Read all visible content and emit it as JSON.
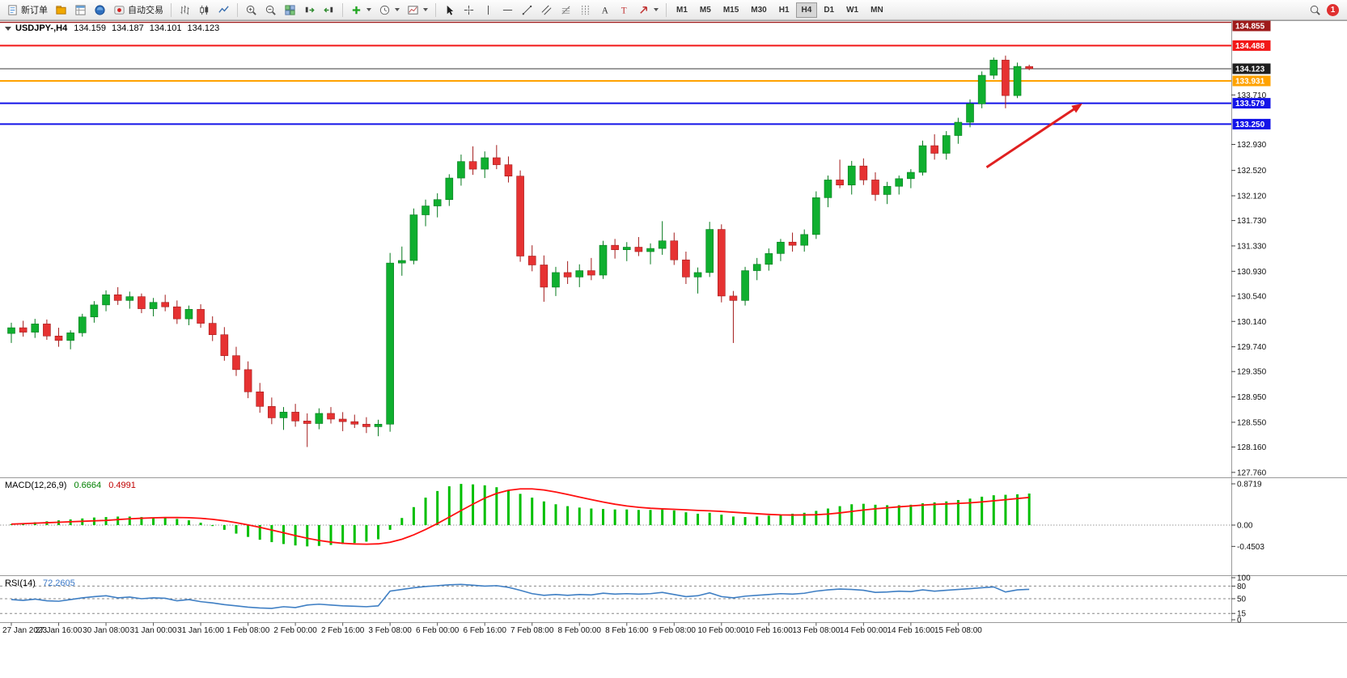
{
  "toolbar": {
    "new_order": "新订单",
    "autotrading": "自动交易",
    "timeframes": [
      "M1",
      "M5",
      "M15",
      "M30",
      "H1",
      "H4",
      "D1",
      "W1",
      "MN"
    ],
    "active_timeframe": "H4",
    "notification": "1"
  },
  "chart": {
    "symbol_period": "USDJPY-,H4",
    "open": "134.159",
    "high": "134.187",
    "low": "134.101",
    "close": "134.123"
  },
  "indicators": {
    "macd": {
      "name": "MACD(12,26,9)",
      "main_value": "0.6664",
      "signal_value": "0.4991"
    },
    "rsi": {
      "name": "RSI(14)",
      "value": "72.2605"
    }
  },
  "chart_data": {
    "type": "candlestick",
    "symbol": "USDJPY-",
    "timeframe": "H4",
    "title": "USDJPY- H4 candlestick chart with MACD and RSI",
    "price_range": [
      127.72,
      134.875
    ],
    "price_axis_ticks": [
      "133.710",
      "132.930",
      "132.520",
      "132.120",
      "131.730",
      "131.330",
      "130.930",
      "130.540",
      "130.140",
      "129.740",
      "129.350",
      "128.950",
      "128.550",
      "128.160",
      "127.760"
    ],
    "candles_per_label": 4,
    "time_labels": [
      "27 Jan 2023",
      "27 Jan 16:00",
      "30 Jan 08:00",
      "31 Jan 00:00",
      "31 Jan 16:00",
      "1 Feb 08:00",
      "2 Feb 00:00",
      "2 Feb 16:00",
      "3 Feb 08:00",
      "6 Feb 00:00",
      "6 Feb 16:00",
      "7 Feb 08:00",
      "8 Feb 00:00",
      "8 Feb 16:00",
      "9 Feb 08:00",
      "10 Feb 00:00",
      "10 Feb 16:00",
      "13 Feb 08:00",
      "14 Feb 00:00",
      "14 Feb 16:00",
      "15 Feb 08:00"
    ],
    "candles_ohlc": [
      [
        129.95,
        130.12,
        129.8,
        130.04
      ],
      [
        130.04,
        130.15,
        129.9,
        129.97
      ],
      [
        129.97,
        130.18,
        129.88,
        130.1
      ],
      [
        130.1,
        130.17,
        129.85,
        129.91
      ],
      [
        129.91,
        130.04,
        129.74,
        129.84
      ],
      [
        129.84,
        130.0,
        129.7,
        129.96
      ],
      [
        129.96,
        130.26,
        129.9,
        130.21
      ],
      [
        130.21,
        130.46,
        130.12,
        130.4
      ],
      [
        130.4,
        130.63,
        130.3,
        130.56
      ],
      [
        130.56,
        130.68,
        130.4,
        130.47
      ],
      [
        130.47,
        130.61,
        130.34,
        130.53
      ],
      [
        130.53,
        130.58,
        130.27,
        130.34
      ],
      [
        130.34,
        130.51,
        130.22,
        130.44
      ],
      [
        130.44,
        130.56,
        130.3,
        130.37
      ],
      [
        130.37,
        130.47,
        130.1,
        130.18
      ],
      [
        130.18,
        130.39,
        130.08,
        130.33
      ],
      [
        130.33,
        130.41,
        130.04,
        130.11
      ],
      [
        130.11,
        130.22,
        129.83,
        129.93
      ],
      [
        129.93,
        130.05,
        129.52,
        129.6
      ],
      [
        129.6,
        129.74,
        129.28,
        129.38
      ],
      [
        129.38,
        129.51,
        128.93,
        129.03
      ],
      [
        129.03,
        129.17,
        128.7,
        128.8
      ],
      [
        128.8,
        128.94,
        128.52,
        128.62
      ],
      [
        128.62,
        128.79,
        128.43,
        128.71
      ],
      [
        128.71,
        128.84,
        128.48,
        128.57
      ],
      [
        128.57,
        128.69,
        128.16,
        128.53
      ],
      [
        128.53,
        128.77,
        128.44,
        128.69
      ],
      [
        128.69,
        128.79,
        128.53,
        128.6
      ],
      [
        128.6,
        128.71,
        128.41,
        128.56
      ],
      [
        128.56,
        128.67,
        128.46,
        128.52
      ],
      [
        128.52,
        128.63,
        128.38,
        128.48
      ],
      [
        128.48,
        128.59,
        128.33,
        128.52
      ],
      [
        128.52,
        131.22,
        128.4,
        131.06
      ],
      [
        131.06,
        131.32,
        130.86,
        131.1
      ],
      [
        131.1,
        131.92,
        131.04,
        131.82
      ],
      [
        131.82,
        132.06,
        131.64,
        131.96
      ],
      [
        131.96,
        132.16,
        131.78,
        132.06
      ],
      [
        132.06,
        132.46,
        131.96,
        132.4
      ],
      [
        132.4,
        132.77,
        132.28,
        132.66
      ],
      [
        132.66,
        132.9,
        132.45,
        132.54
      ],
      [
        132.54,
        132.82,
        132.4,
        132.72
      ],
      [
        132.72,
        132.92,
        132.54,
        132.61
      ],
      [
        132.61,
        132.74,
        132.33,
        132.43
      ],
      [
        132.43,
        132.52,
        131.08,
        131.17
      ],
      [
        131.17,
        131.34,
        130.93,
        131.03
      ],
      [
        131.03,
        131.18,
        130.45,
        130.68
      ],
      [
        130.68,
        131.0,
        130.54,
        130.91
      ],
      [
        130.91,
        131.09,
        130.73,
        130.84
      ],
      [
        130.84,
        131.04,
        130.68,
        130.94
      ],
      [
        130.94,
        131.14,
        130.79,
        130.87
      ],
      [
        130.87,
        131.41,
        130.81,
        131.34
      ],
      [
        131.34,
        131.44,
        131.13,
        131.27
      ],
      [
        131.27,
        131.39,
        131.09,
        131.31
      ],
      [
        131.31,
        131.47,
        131.17,
        131.24
      ],
      [
        131.24,
        131.37,
        131.04,
        131.29
      ],
      [
        131.29,
        131.72,
        131.19,
        131.41
      ],
      [
        131.41,
        131.54,
        131.03,
        131.11
      ],
      [
        131.11,
        131.24,
        130.73,
        130.84
      ],
      [
        130.84,
        130.99,
        130.58,
        130.91
      ],
      [
        130.91,
        131.71,
        130.84,
        131.59
      ],
      [
        131.59,
        131.67,
        130.44,
        130.54
      ],
      [
        130.54,
        130.62,
        129.8,
        130.47
      ],
      [
        130.47,
        131.0,
        130.39,
        130.94
      ],
      [
        130.94,
        131.14,
        130.79,
        131.04
      ],
      [
        131.04,
        131.29,
        130.94,
        131.21
      ],
      [
        131.21,
        131.44,
        131.09,
        131.39
      ],
      [
        131.39,
        131.54,
        131.24,
        131.34
      ],
      [
        131.34,
        131.59,
        131.24,
        131.51
      ],
      [
        131.51,
        132.19,
        131.44,
        132.09
      ],
      [
        132.09,
        132.44,
        131.94,
        132.37
      ],
      [
        132.37,
        132.69,
        132.24,
        132.29
      ],
      [
        132.29,
        132.67,
        132.14,
        132.59
      ],
      [
        132.59,
        132.71,
        132.29,
        132.37
      ],
      [
        132.37,
        132.49,
        132.04,
        132.14
      ],
      [
        132.14,
        132.34,
        131.99,
        132.27
      ],
      [
        132.27,
        132.44,
        132.14,
        132.39
      ],
      [
        132.39,
        132.54,
        132.24,
        132.49
      ],
      [
        132.49,
        132.99,
        132.44,
        132.91
      ],
      [
        132.91,
        133.09,
        132.69,
        132.79
      ],
      [
        132.79,
        133.14,
        132.69,
        133.07
      ],
      [
        133.07,
        133.35,
        132.94,
        133.28
      ],
      [
        133.28,
        133.64,
        133.2,
        133.57
      ],
      [
        133.57,
        134.08,
        133.5,
        134.02
      ],
      [
        134.02,
        134.3,
        133.96,
        134.26
      ],
      [
        134.26,
        134.33,
        133.5,
        133.7
      ],
      [
        133.7,
        134.22,
        133.66,
        134.16
      ],
      [
        134.159,
        134.187,
        134.101,
        134.123
      ]
    ],
    "horizontal_lines": [
      {
        "label": "134.855",
        "price": 134.855,
        "color": "#9e1a1a",
        "width": 1.3
      },
      {
        "label": "134.488",
        "price": 134.488,
        "color": "#f21818",
        "width": 2
      },
      {
        "label": "134.123",
        "price": 134.123,
        "color": "#3a3a3a",
        "width": 1,
        "bg": "#1e1e1e"
      },
      {
        "label": "133.931",
        "price": 133.931,
        "color": "#ffa200",
        "width": 2
      },
      {
        "label": "133.579",
        "price": 133.579,
        "color": "#1414e8",
        "width": 2
      },
      {
        "label": "133.250",
        "price": 133.25,
        "color": "#1414e8",
        "width": 2
      }
    ],
    "macd": {
      "histogram": [
        0.02,
        0.04,
        0.06,
        0.08,
        0.1,
        0.12,
        0.14,
        0.16,
        0.17,
        0.18,
        0.18,
        0.17,
        0.16,
        0.15,
        0.13,
        0.1,
        0.05,
        -0.02,
        -0.1,
        -0.18,
        -0.25,
        -0.31,
        -0.36,
        -0.4,
        -0.43,
        -0.45,
        -0.44,
        -0.42,
        -0.4,
        -0.38,
        -0.35,
        -0.3,
        -0.1,
        0.15,
        0.38,
        0.58,
        0.72,
        0.82,
        0.87,
        0.86,
        0.84,
        0.8,
        0.74,
        0.66,
        0.58,
        0.5,
        0.44,
        0.4,
        0.37,
        0.35,
        0.34,
        0.33,
        0.33,
        0.32,
        0.32,
        0.33,
        0.31,
        0.27,
        0.24,
        0.26,
        0.22,
        0.18,
        0.17,
        0.18,
        0.2,
        0.22,
        0.24,
        0.26,
        0.3,
        0.35,
        0.4,
        0.44,
        0.45,
        0.43,
        0.42,
        0.42,
        0.43,
        0.46,
        0.48,
        0.5,
        0.53,
        0.56,
        0.6,
        0.63,
        0.64,
        0.65,
        0.6664
      ],
      "signal_period": 9,
      "range": [
        -1.0,
        0.97
      ],
      "scale_labels": [
        {
          "text": "0.8719",
          "value": 0.8719
        },
        {
          "text": "0.00",
          "value": 0
        },
        {
          "text": "-0.4503",
          "value": -0.4503
        }
      ]
    },
    "rsi": {
      "values": [
        48,
        46,
        49,
        45,
        44,
        48,
        52,
        55,
        57,
        52,
        54,
        50,
        52,
        51,
        45,
        48,
        43,
        40,
        36,
        33,
        30,
        28,
        27,
        31,
        29,
        35,
        37,
        35,
        33,
        32,
        31,
        33,
        68,
        72,
        76,
        79,
        81,
        83,
        84,
        82,
        80,
        81,
        77,
        70,
        62,
        58,
        60,
        58,
        60,
        59,
        63,
        61,
        62,
        61,
        62,
        65,
        60,
        55,
        57,
        64,
        55,
        52,
        56,
        58,
        60,
        62,
        61,
        63,
        68,
        71,
        73,
        72,
        70,
        65,
        66,
        68,
        67,
        71,
        68,
        70,
        72,
        74,
        76,
        78,
        66,
        71,
        72.26
      ],
      "levels": [
        80,
        50,
        15
      ],
      "range": [
        0,
        100
      ],
      "scale_labels": [
        {
          "text": "100",
          "value": 100
        },
        {
          "text": "80",
          "value": 80
        },
        {
          "text": "50",
          "value": 50
        },
        {
          "text": "15",
          "value": 15
        },
        {
          "text": "0",
          "value": 0
        }
      ]
    },
    "annotation_arrow": {
      "from_index": 82.4,
      "from_price": 132.57,
      "to_index": 90.5,
      "to_price": 133.575,
      "color": "#e02020"
    },
    "colors": {
      "up": "#0faf2f",
      "up_stroke": "#067a1e",
      "down": "#e63232",
      "down_stroke": "#a31b1b",
      "macd_hist": "#00bf00",
      "macd_signal": "#ff1010",
      "rsi_line": "#3f7fc4",
      "axis_text": "#111111"
    }
  }
}
